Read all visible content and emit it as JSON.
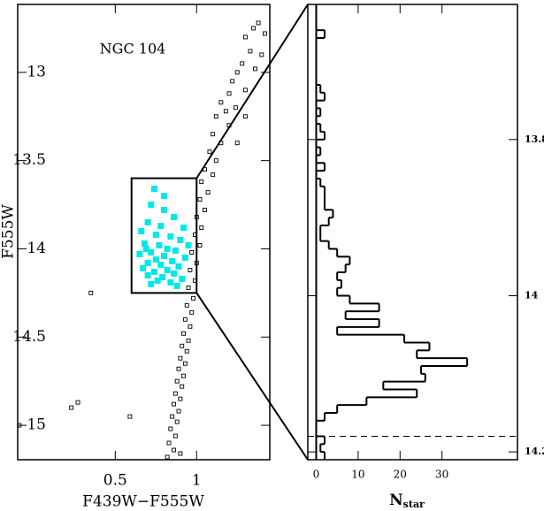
{
  "chart_data": [
    {
      "type": "scatter",
      "x_label": "F439W−F555W",
      "y_label": "F555W",
      "annotation": "NGC 104",
      "xlim": [
        -0.1,
        1.45
      ],
      "xticks": [
        0.5,
        1
      ],
      "ylim": [
        12.615,
        15.195
      ],
      "yticks": [
        13,
        13.5,
        14,
        14.5,
        15
      ],
      "y_inverted": true,
      "selection_box": {
        "x": [
          0.6,
          1.0
        ],
        "y": [
          13.6,
          14.25
        ]
      },
      "series": [
        {
          "color": "#000000",
          "marker": "hollow",
          "x": [
            1.38,
            1.35,
            1.42,
            1.3,
            1.33,
            1.28,
            1.36,
            1.25,
            1.22,
            1.3,
            1.2,
            1.15,
            1.24,
            1.18,
            1.12,
            1.2,
            1.1,
            1.15,
            1.08,
            1.12,
            1.05,
            1.1,
            1.03,
            1.07,
            1.02,
            1.05,
            1.0,
            1.03,
            0.99,
            1.02,
            0.97,
            1.0,
            0.96,
            0.99,
            0.95,
            0.98,
            0.94,
            0.97,
            0.93,
            0.96,
            0.92,
            0.95,
            0.91,
            0.94,
            0.9,
            0.93,
            0.89,
            0.92,
            0.88,
            0.91,
            0.87,
            0.9,
            0.86,
            0.89,
            0.85,
            0.88,
            0.84,
            0.87,
            0.83,
            0.86,
            0.82,
            0.9,
            0.27,
            0.23,
            -0.09,
            0.59,
            0.35,
            1.25,
            1.3,
            1.4
          ],
          "values": [
            12.72,
            12.75,
            12.78,
            12.8,
            12.88,
            12.95,
            12.98,
            13.0,
            13.05,
            13.1,
            13.12,
            13.17,
            13.2,
            13.22,
            13.25,
            13.3,
            13.35,
            13.4,
            13.45,
            13.5,
            13.55,
            13.58,
            13.62,
            13.68,
            13.72,
            13.78,
            13.82,
            13.88,
            13.92,
            13.98,
            14.02,
            14.08,
            14.12,
            14.18,
            14.22,
            14.28,
            14.32,
            14.36,
            14.4,
            14.44,
            14.48,
            14.52,
            14.55,
            14.58,
            14.62,
            14.65,
            14.68,
            14.72,
            14.75,
            14.78,
            14.82,
            14.85,
            14.88,
            14.92,
            14.95,
            14.98,
            15.02,
            15.06,
            15.1,
            15.14,
            15.18,
            15.16,
            14.87,
            14.9,
            15.0,
            14.95,
            14.25,
            13.4,
            13.25,
            12.9
          ]
        },
        {
          "color": "#00e8e8",
          "marker": "filled",
          "x": [
            0.72,
            0.8,
            0.86,
            0.7,
            0.78,
            0.92,
            0.66,
            0.75,
            0.84,
            0.9,
            0.68,
            0.77,
            0.82,
            0.87,
            0.72,
            0.65,
            0.8,
            0.93,
            0.75,
            0.85,
            0.7,
            0.78,
            0.89,
            0.67,
            0.82,
            0.74,
            0.86,
            0.7,
            0.79,
            0.91,
            0.76,
            0.84,
            0.72,
            0.8,
            0.74,
            0.88,
            0.69,
            0.95
          ],
          "values": [
            13.75,
            13.78,
            13.82,
            13.85,
            13.87,
            13.88,
            13.9,
            13.92,
            13.93,
            13.95,
            13.97,
            13.98,
            14.0,
            14.01,
            14.02,
            14.03,
            14.04,
            14.05,
            14.06,
            14.07,
            14.08,
            14.09,
            14.1,
            14.11,
            14.12,
            14.13,
            14.14,
            14.15,
            14.16,
            14.17,
            14.18,
            14.19,
            14.2,
            13.7,
            13.66,
            14.21,
            14.0,
            13.98
          ]
        }
      ]
    },
    {
      "type": "histogram",
      "x_label": "N",
      "x_label_sub": "star",
      "xlim": [
        -2,
        48
      ],
      "xticks": [
        0,
        10,
        20,
        30
      ],
      "ylim": [
        13.627,
        14.21
      ],
      "yticks": [
        13.8,
        14,
        14.2
      ],
      "y_inverted": true,
      "y_axis_side": "right",
      "reference_line": 14.18,
      "bins": [
        13.63,
        13.64,
        13.65,
        13.66,
        13.67,
        13.68,
        13.69,
        13.7,
        13.71,
        13.72,
        13.73,
        13.74,
        13.75,
        13.76,
        13.77,
        13.78,
        13.79,
        13.8,
        13.81,
        13.82,
        13.83,
        13.84,
        13.85,
        13.86,
        13.87,
        13.88,
        13.89,
        13.9,
        13.91,
        13.92,
        13.93,
        13.94,
        13.95,
        13.96,
        13.97,
        13.98,
        13.99,
        14.0,
        14.01,
        14.02,
        14.03,
        14.04,
        14.05,
        14.06,
        14.07,
        14.08,
        14.09,
        14.1,
        14.11,
        14.12,
        14.13,
        14.14,
        14.15,
        14.16,
        14.17,
        14.18,
        14.19,
        14.2,
        14.21
      ],
      "counts": [
        0,
        0,
        0,
        2,
        0,
        0,
        0,
        0,
        0,
        0,
        1,
        2,
        0,
        1,
        0,
        1,
        2,
        0,
        1,
        0,
        2,
        0,
        1,
        2,
        2,
        2,
        4,
        3,
        1,
        1,
        3,
        5,
        8,
        7,
        5,
        6,
        5,
        8,
        15,
        7,
        15,
        5,
        21,
        27,
        24,
        36,
        25,
        26,
        16,
        24,
        12,
        5,
        2,
        0,
        0,
        2,
        1,
        2
      ]
    }
  ]
}
